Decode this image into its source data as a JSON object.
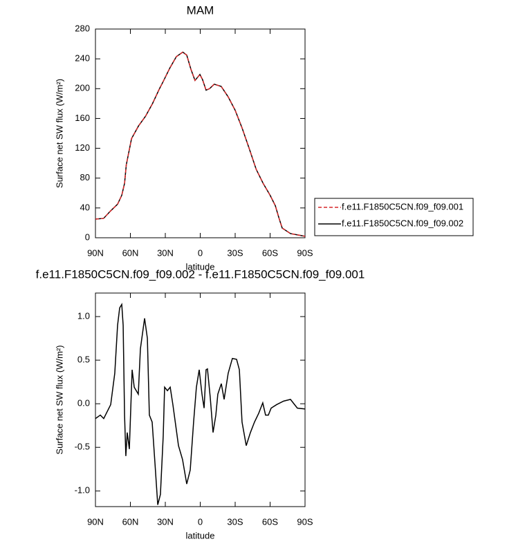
{
  "chart_data": [
    {
      "type": "line",
      "title": "MAM",
      "xlabel": "latitude",
      "ylabel": "Surface net SW flux (W/m²)",
      "x": [
        90,
        83,
        77,
        71,
        67.4,
        65,
        63.5,
        59,
        53,
        47,
        41,
        35,
        32,
        26,
        20.5,
        15,
        11.6,
        8,
        4.5,
        0.3,
        -2,
        -5,
        -8,
        -12,
        -18,
        -24,
        -30,
        -36,
        -42,
        -48,
        -54,
        -60,
        -64.5,
        -67.5,
        -70.4,
        -77.5,
        -90
      ],
      "series": [
        {
          "name": "f.e11.F1850C5CN.f09_f09.001",
          "color": "#d62728",
          "linestyle": "dashed",
          "values": [
            25,
            26,
            36,
            45,
            57,
            73,
            98,
            133,
            150,
            163,
            180,
            200,
            209,
            228,
            243,
            249,
            245,
            226,
            211,
            219,
            212,
            198,
            200,
            206,
            203,
            189,
            171,
            147,
            120,
            92,
            73,
            57,
            43,
            27,
            13,
            5.6,
            2
          ]
        },
        {
          "name": "f.e11.F1850C5CN.f09_f09.002",
          "color": "#000000",
          "linestyle": "solid",
          "values": [
            25,
            26,
            36,
            45,
            57,
            73,
            98,
            133,
            150,
            163,
            180,
            200,
            209,
            228,
            243,
            249,
            245,
            226,
            211,
            219,
            212,
            198,
            200,
            206,
            203,
            189,
            171,
            147,
            120,
            92,
            73,
            57,
            43,
            27,
            13,
            5.6,
            2
          ]
        }
      ],
      "xlim": [
        90,
        -90
      ],
      "xticks": [
        {
          "value": 90,
          "label": "90N"
        },
        {
          "value": 60,
          "label": "60N"
        },
        {
          "value": 30,
          "label": "30N"
        },
        0,
        {
          "value": -30,
          "label": "30S"
        },
        {
          "value": -60,
          "label": "60S"
        },
        {
          "value": -90,
          "label": "90S"
        }
      ],
      "ylim": [
        0,
        280
      ],
      "yticks": [
        0,
        40,
        80,
        120,
        160,
        200,
        240,
        280
      ],
      "legend": "right"
    },
    {
      "type": "line",
      "title": "f.e11.F1850C5CN.f09_f09.002 - f.e11.F1850C5CN.f09_f09.001",
      "xlabel": "latitude",
      "ylabel": "Surface net SW flux (W/m²)",
      "x": [
        90,
        85.8,
        82.9,
        76.9,
        73.4,
        71,
        69.2,
        67.4,
        66.2,
        65,
        63.9,
        62.7,
        60.9,
        58.5,
        56.7,
        53.2,
        51.4,
        47.8,
        45.4,
        43.7,
        41.3,
        38.9,
        36.5,
        34.2,
        31.8,
        30.6,
        28.2,
        25.8,
        23.5,
        18.7,
        15.2,
        11.6,
        8.6,
        5.7,
        3.3,
        0.9,
        -1.5,
        -3.3,
        -5,
        -6.2,
        -8.6,
        -11,
        -13.4,
        -15.1,
        -18.1,
        -20.5,
        -24,
        -27.6,
        -31.2,
        -33.6,
        -35.9,
        -39.5,
        -43.1,
        -46.6,
        -50.2,
        -53.7,
        -56.1,
        -58.5,
        -60.9,
        -65.6,
        -71.6,
        -77.5,
        -83.4,
        -90
      ],
      "series": [
        {
          "color": "#000000",
          "linestyle": "solid",
          "values": [
            -0.17,
            -0.13,
            -0.17,
            -0.01,
            0.35,
            0.9,
            1.1,
            1.14,
            0.9,
            -0.13,
            -0.6,
            -0.33,
            -0.52,
            0.39,
            0.19,
            0.11,
            0.63,
            0.98,
            0.75,
            -0.13,
            -0.21,
            -0.68,
            -1.16,
            -1.04,
            -0.37,
            0.19,
            0.15,
            0.19,
            -0.01,
            -0.48,
            -0.64,
            -0.92,
            -0.76,
            -0.21,
            0.19,
            0.39,
            0.11,
            -0.05,
            0.39,
            0.4,
            0.07,
            -0.33,
            -0.13,
            0.11,
            0.23,
            0.05,
            0.35,
            0.52,
            0.51,
            0.39,
            -0.21,
            -0.48,
            -0.33,
            -0.21,
            -0.11,
            0.01,
            -0.13,
            -0.13,
            -0.05,
            -0.01,
            0.03,
            0.05,
            -0.05,
            -0.06
          ]
        }
      ],
      "xlim": [
        90,
        -90
      ],
      "xticks": [
        {
          "value": 90,
          "label": "90N"
        },
        {
          "value": 60,
          "label": "60N"
        },
        {
          "value": 30,
          "label": "30N"
        },
        0,
        {
          "value": -30,
          "label": "30S"
        },
        {
          "value": -60,
          "label": "60S"
        },
        {
          "value": -90,
          "label": "90S"
        }
      ],
      "ylim": [
        -1.18,
        1.27
      ],
      "yticks": [
        {
          "value": -1,
          "label": "-1.0"
        },
        -0.5,
        {
          "value": 0,
          "label": "0.0"
        },
        0.5,
        {
          "value": 1,
          "label": "1.0"
        }
      ]
    }
  ]
}
